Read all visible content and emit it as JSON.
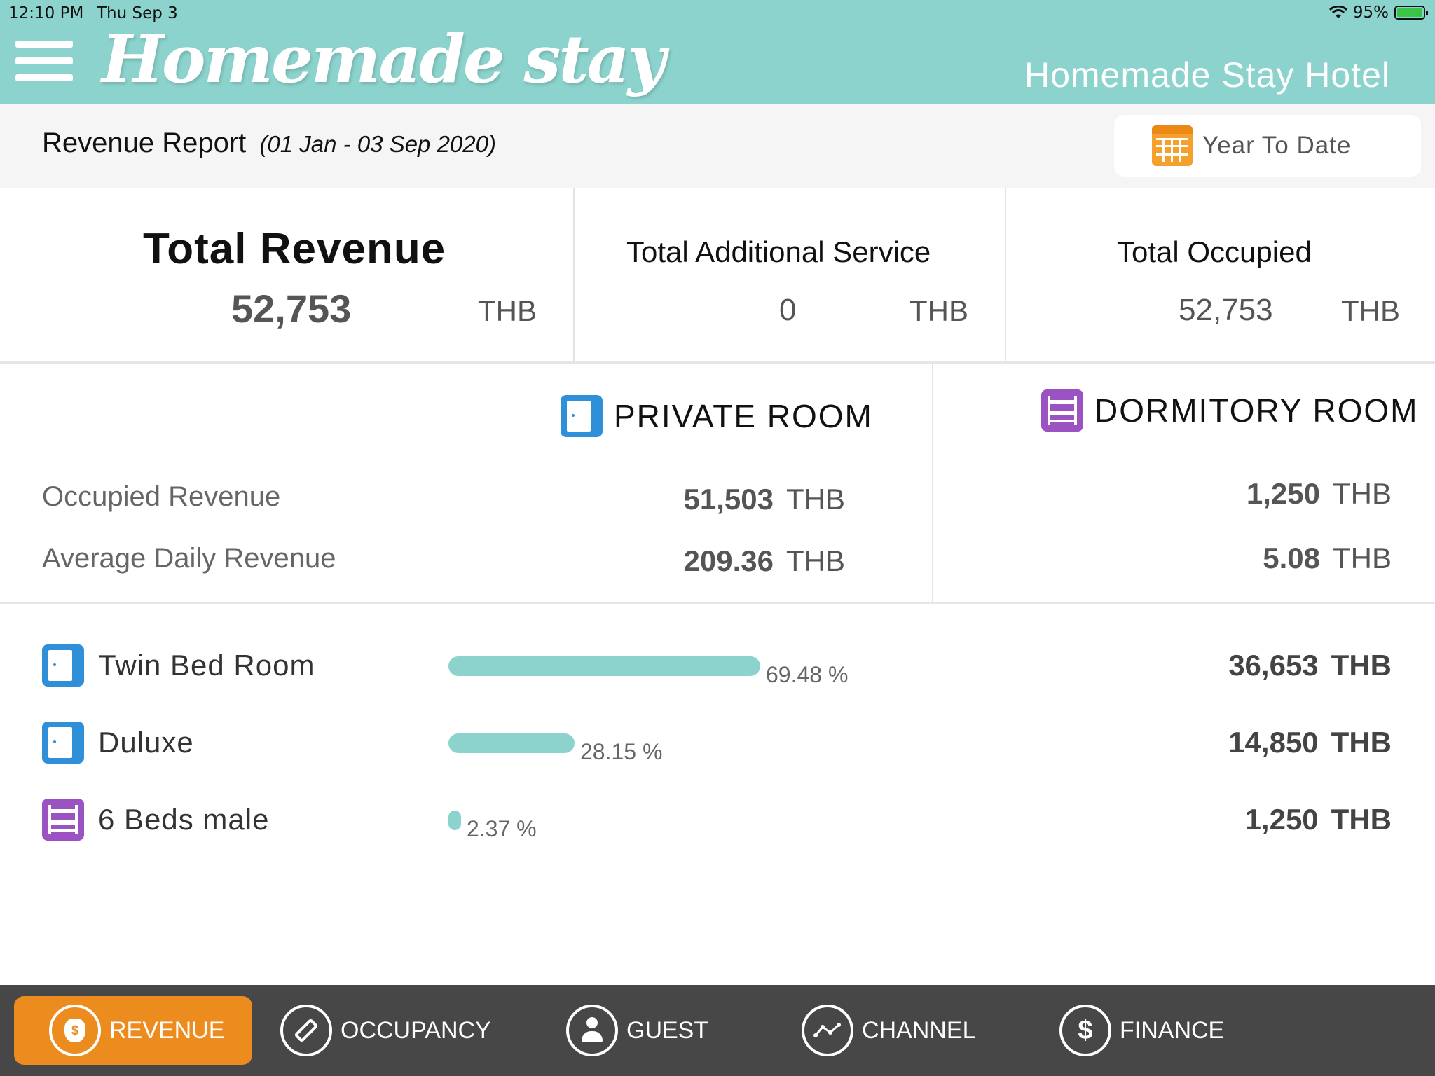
{
  "status_bar": {
    "time": "12:10 PM",
    "date": "Thu Sep 3",
    "wifi_icon": "wifi-icon",
    "battery": "95%"
  },
  "header": {
    "logo": "Homemade stay",
    "hotel_name": "Homemade Stay Hotel",
    "accent": "#8cd3cd"
  },
  "report": {
    "title": "Revenue Report",
    "range": "(01 Jan - 03 Sep 2020)",
    "period_button": "Year To Date"
  },
  "totals": [
    {
      "label": "Total Revenue",
      "value": "52,753",
      "unit": "THB"
    },
    {
      "label": "Total Additional Service",
      "value": "0",
      "unit": "THB"
    },
    {
      "label": "Total Occupied",
      "value": "52,753",
      "unit": "THB"
    }
  ],
  "room_types": {
    "private": {
      "title": "PRIVATE ROOM",
      "occupied_revenue": "51,503",
      "average_daily": "209.36",
      "unit": "THB"
    },
    "dormitory": {
      "title": "DORMITORY ROOM",
      "occupied_revenue": "1,250",
      "average_daily": "5.08",
      "unit": "THB"
    },
    "row_labels": {
      "occupied": "Occupied Revenue",
      "average": "Average Daily Revenue"
    }
  },
  "breakdown": [
    {
      "icon": "door-icon",
      "name": "Twin Bed Room",
      "percent": 69.48,
      "percent_label": "69.48 %",
      "amount": "36,653",
      "unit": "THB"
    },
    {
      "icon": "door-icon",
      "name": "Duluxe",
      "percent": 28.15,
      "percent_label": "28.15 %",
      "amount": "14,850",
      "unit": "THB"
    },
    {
      "icon": "bunk-bed-icon",
      "name": "6 Beds male",
      "percent": 2.37,
      "percent_label": "2.37 %",
      "amount": "1,250",
      "unit": "THB"
    }
  ],
  "nav": [
    {
      "label": "REVENUE",
      "icon": "money-bag-icon",
      "active": true
    },
    {
      "label": "OCCUPANCY",
      "icon": "tag-icon",
      "active": false
    },
    {
      "label": "GUEST",
      "icon": "person-icon",
      "active": false
    },
    {
      "label": "CHANNEL",
      "icon": "channel-graph-icon",
      "active": false
    },
    {
      "label": "FINANCE",
      "icon": "dollar-icon",
      "active": false
    }
  ]
}
